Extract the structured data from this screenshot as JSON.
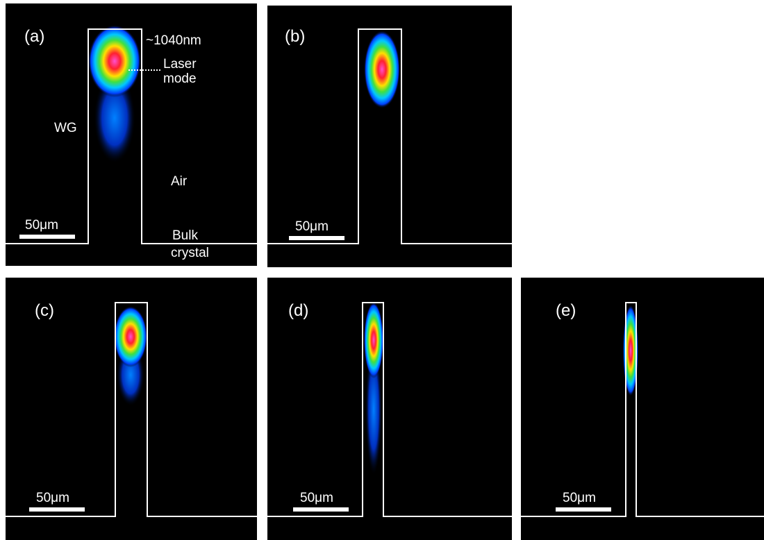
{
  "panels": [
    {
      "label": "(a)",
      "scale_bar": "50μm",
      "annotations": {
        "wavelength": "~1040nm",
        "laser_mode": [
          "Laser",
          "mode"
        ],
        "waveguide": "WG",
        "air": "Air",
        "bulk": [
          "Bulk",
          "crystal"
        ]
      }
    },
    {
      "label": "(b)",
      "scale_bar": "50μm"
    },
    {
      "label": "(c)",
      "scale_bar": "50μm"
    },
    {
      "label": "(d)",
      "scale_bar": "50μm"
    },
    {
      "label": "(e)",
      "scale_bar": "50μm"
    }
  ]
}
